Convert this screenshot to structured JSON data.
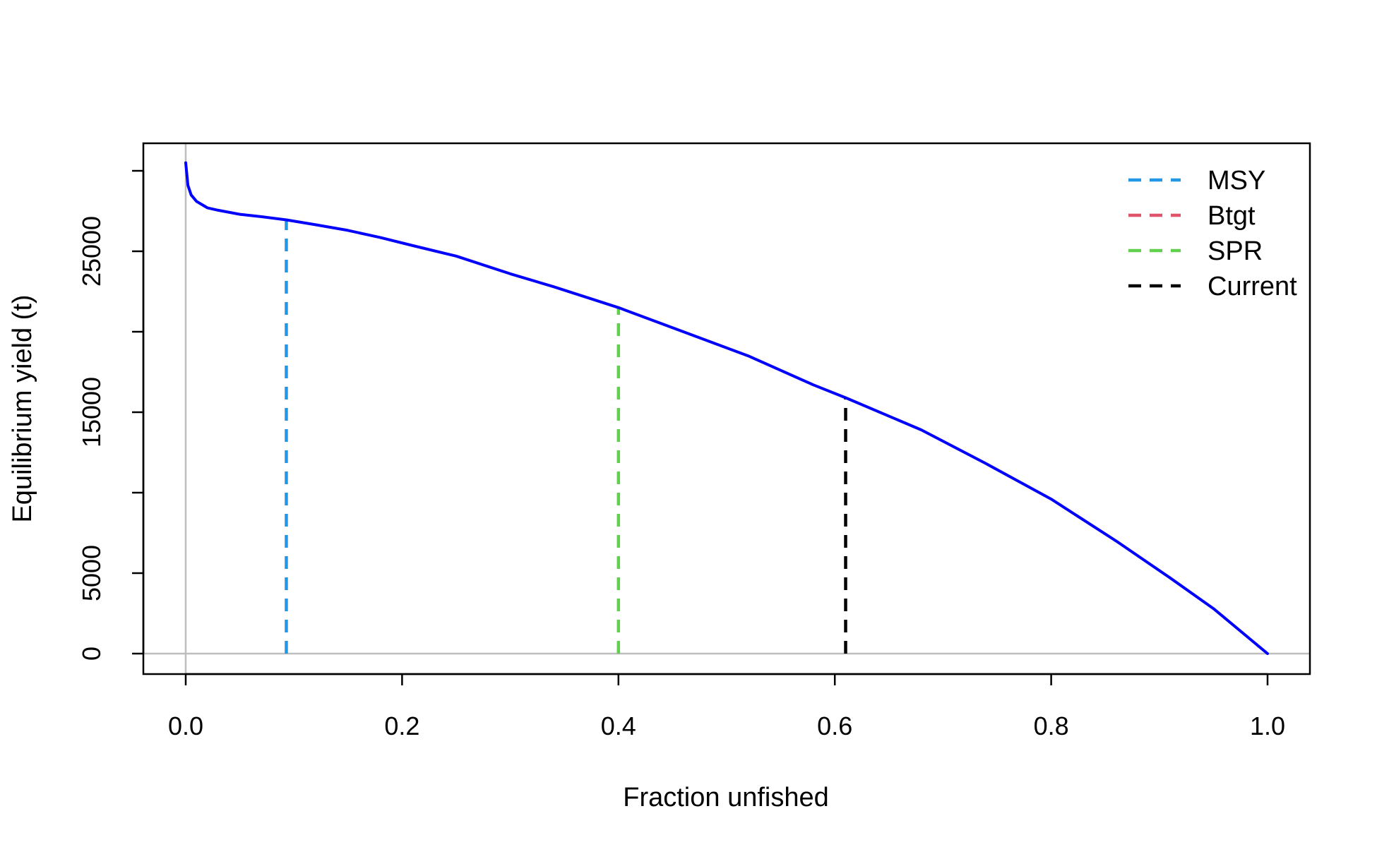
{
  "chart_data": {
    "type": "line",
    "title": "",
    "xlabel": "Fraction unfished",
    "ylabel": "Equilibrium yield (t)",
    "xlim": [
      0.0,
      1.0
    ],
    "ylim": [
      0,
      30000
    ],
    "x_ticks": [
      0.0,
      0.2,
      0.4,
      0.6,
      0.8,
      1.0
    ],
    "x_tick_labels": [
      "0.0",
      "0.2",
      "0.4",
      "0.6",
      "0.8",
      "1.0"
    ],
    "y_ticks": [
      0,
      5000,
      10000,
      15000,
      20000,
      25000,
      30000
    ],
    "y_tick_labels": [
      "0",
      "5000",
      "",
      "15000",
      "",
      "25000",
      ""
    ],
    "grid": false,
    "reference_lines": {
      "horizontal_zero": {
        "y": 0,
        "color": "#bebebe"
      },
      "vertical_zero": {
        "x": 0,
        "color": "#bebebe"
      }
    },
    "series": [
      {
        "color": "#0000ff",
        "x": [
          0.0,
          0.002,
          0.005,
          0.01,
          0.015,
          0.02,
          0.03,
          0.05,
          0.07,
          0.093,
          0.12,
          0.15,
          0.18,
          0.21,
          0.25,
          0.3,
          0.34,
          0.4,
          0.46,
          0.52,
          0.58,
          0.61,
          0.68,
          0.74,
          0.8,
          0.86,
          0.91,
          0.95,
          1.0
        ],
        "y": [
          30500,
          29100,
          28500,
          28100,
          27900,
          27700,
          27550,
          27300,
          27150,
          26950,
          26650,
          26300,
          25850,
          25350,
          24700,
          23600,
          22800,
          21500,
          20000,
          18500,
          16700,
          15900,
          13900,
          11800,
          9600,
          7000,
          4700,
          2800,
          0
        ]
      }
    ],
    "vlines": [
      {
        "name": "MSY",
        "x": 0.093,
        "y_top": 26950,
        "color": "#2297e6"
      },
      {
        "name": "SPR",
        "x": 0.4,
        "y_top": 21500,
        "color": "#61d04f"
      },
      {
        "name": "Current",
        "x": 0.61,
        "y_top": 15900,
        "color": "#000000"
      }
    ],
    "legend": {
      "position": "top-right",
      "entries": [
        {
          "label": "MSY",
          "color": "#2297e6"
        },
        {
          "label": "Btgt",
          "color": "#df536b"
        },
        {
          "label": "SPR",
          "color": "#61d04f"
        },
        {
          "label": "Current",
          "color": "#000000"
        }
      ]
    }
  }
}
